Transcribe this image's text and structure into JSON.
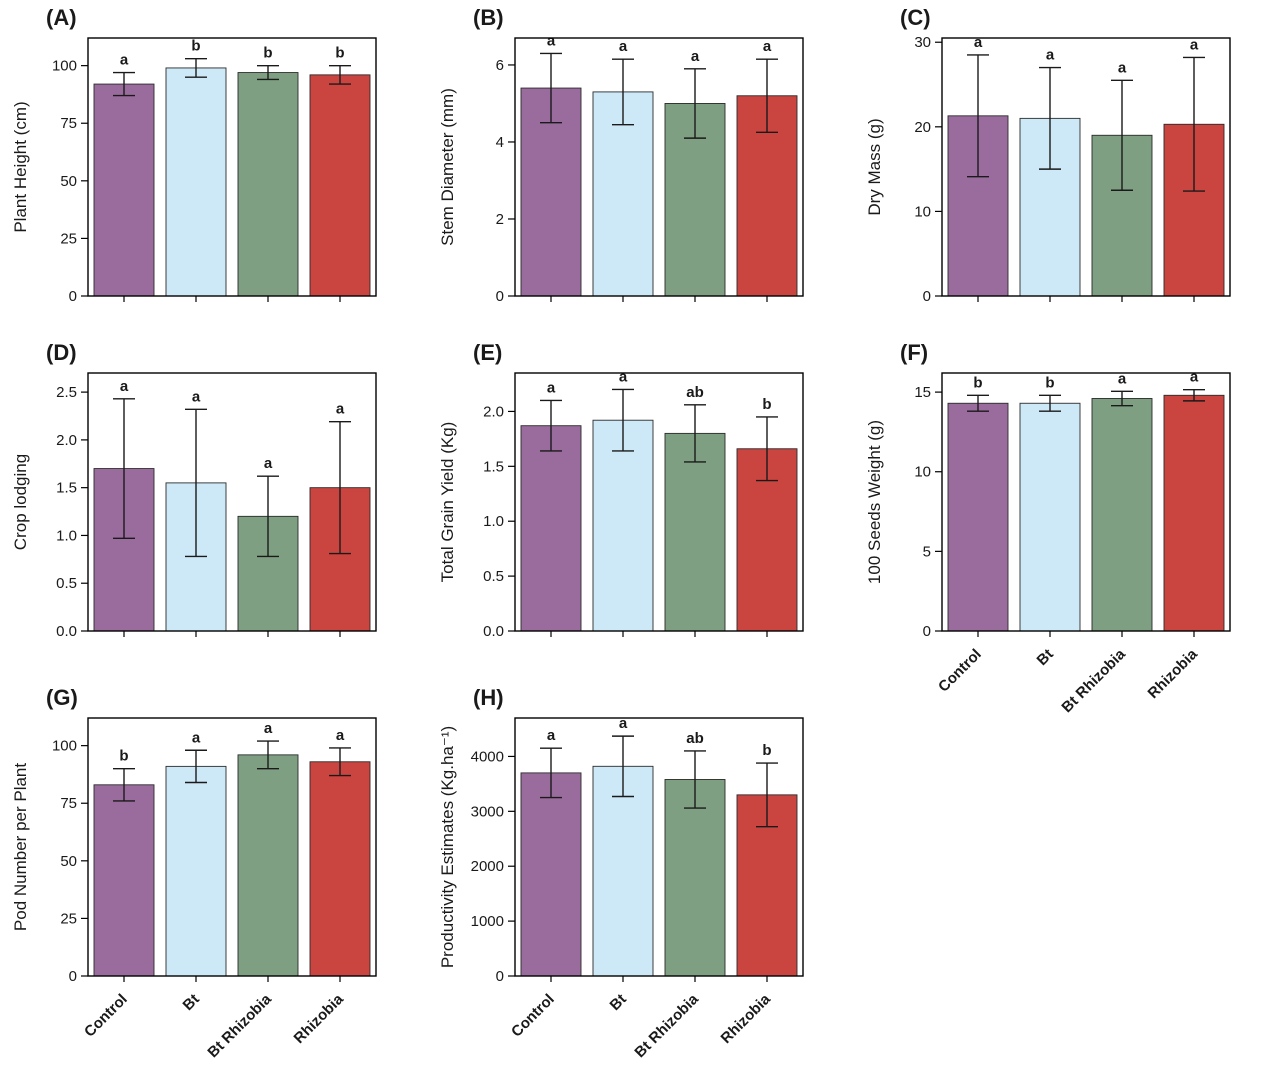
{
  "style": {
    "bar_colors": [
      "#9a6c9d",
      "#cde8f6",
      "#7e9f82",
      "#ca4540"
    ],
    "bar_stroke": "#2b2b2b",
    "error_bar_color": "#1a1a1a",
    "frame_color": "#000000",
    "text_color": "#1a1a1a",
    "background": "#ffffff"
  },
  "categories": [
    "Control",
    "Bt",
    "Bt Rhizobia",
    "Rhizobia"
  ],
  "chart_data": [
    {
      "panel": "(A)",
      "type": "bar",
      "ylabel": "Plant Height (cm)",
      "categories": [
        "Control",
        "Bt",
        "Bt Rhizobia",
        "Rhizobia"
      ],
      "values": [
        92,
        99,
        97,
        96
      ],
      "errors": [
        5,
        4,
        3,
        4
      ],
      "letters": [
        "a",
        "b",
        "b",
        "b"
      ],
      "ylim": [
        0,
        112
      ],
      "ytick_values": [
        0,
        25,
        50,
        75,
        100
      ],
      "ytick_labels": [
        "0",
        "25",
        "50",
        "75",
        "100"
      ],
      "show_x_labels": false
    },
    {
      "panel": "(B)",
      "type": "bar",
      "ylabel": "Stem Diameter (mm)",
      "categories": [
        "Control",
        "Bt",
        "Bt Rhizobia",
        "Rhizobia"
      ],
      "values": [
        5.4,
        5.3,
        5.0,
        5.2
      ],
      "errors": [
        0.9,
        0.85,
        0.9,
        0.95
      ],
      "letters": [
        "a",
        "a",
        "a",
        "a"
      ],
      "ylim": [
        0,
        6.7
      ],
      "ytick_values": [
        0,
        2,
        4,
        6
      ],
      "ytick_labels": [
        "0",
        "2",
        "4",
        "6"
      ],
      "show_x_labels": false
    },
    {
      "panel": "(C)",
      "type": "bar",
      "ylabel": "Dry Mass (g)",
      "categories": [
        "Control",
        "Bt",
        "Bt Rhizobia",
        "Rhizobia"
      ],
      "values": [
        21.3,
        21.0,
        19.0,
        20.3
      ],
      "errors": [
        7.2,
        6.0,
        6.5,
        7.9
      ],
      "letters": [
        "a",
        "a",
        "a",
        "a"
      ],
      "ylim": [
        0,
        30.5
      ],
      "ytick_values": [
        0,
        10,
        20,
        30
      ],
      "ytick_labels": [
        "0",
        "10",
        "20",
        "30"
      ],
      "show_x_labels": false
    },
    {
      "panel": "(D)",
      "type": "bar",
      "ylabel": "Crop lodging",
      "categories": [
        "Control",
        "Bt",
        "Bt Rhizobia",
        "Rhizobia"
      ],
      "values": [
        1.7,
        1.55,
        1.2,
        1.5
      ],
      "errors": [
        0.73,
        0.77,
        0.42,
        0.69
      ],
      "letters": [
        "a",
        "a",
        "a",
        "a"
      ],
      "ylim": [
        0,
        2.7
      ],
      "ytick_values": [
        0,
        0.5,
        1.0,
        1.5,
        2.0,
        2.5
      ],
      "ytick_labels": [
        "0.0",
        "0.5",
        "1.0",
        "1.5",
        "2.0",
        "2.5"
      ],
      "show_x_labels": false
    },
    {
      "panel": "(E)",
      "type": "bar",
      "ylabel": "Total Grain Yield (Kg)",
      "categories": [
        "Control",
        "Bt",
        "Bt Rhizobia",
        "Rhizobia"
      ],
      "values": [
        1.87,
        1.92,
        1.8,
        1.66
      ],
      "errors": [
        0.23,
        0.28,
        0.26,
        0.29
      ],
      "letters": [
        "a",
        "a",
        "ab",
        "b"
      ],
      "ylim": [
        0,
        2.35
      ],
      "ytick_values": [
        0,
        0.5,
        1.0,
        1.5,
        2.0
      ],
      "ytick_labels": [
        "0.0",
        "0.5",
        "1.0",
        "1.5",
        "2.0"
      ],
      "show_x_labels": false
    },
    {
      "panel": "(F)",
      "type": "bar",
      "ylabel": "100 Seeds Weight (g)",
      "categories": [
        "Control",
        "Bt",
        "Bt Rhizobia",
        "Rhizobia"
      ],
      "values": [
        14.3,
        14.3,
        14.6,
        14.8
      ],
      "errors": [
        0.5,
        0.5,
        0.45,
        0.35
      ],
      "letters": [
        "b",
        "b",
        "a",
        "a"
      ],
      "ylim": [
        0,
        16.2
      ],
      "ytick_values": [
        0,
        5,
        10,
        15
      ],
      "ytick_labels": [
        "0",
        "5",
        "10",
        "15"
      ],
      "show_x_labels": true
    },
    {
      "panel": "(G)",
      "type": "bar",
      "ylabel": "Pod Number per Plant",
      "categories": [
        "Control",
        "Bt",
        "Bt Rhizobia",
        "Rhizobia"
      ],
      "values": [
        83,
        91,
        96,
        93
      ],
      "errors": [
        7,
        7,
        6,
        6
      ],
      "letters": [
        "b",
        "a",
        "a",
        "a"
      ],
      "ylim": [
        0,
        112
      ],
      "ytick_values": [
        0,
        25,
        50,
        75,
        100
      ],
      "ytick_labels": [
        "0",
        "25",
        "50",
        "75",
        "100"
      ],
      "show_x_labels": true
    },
    {
      "panel": "(H)",
      "type": "bar",
      "ylabel": "Productivity Estimates (Kg.ha⁻¹)",
      "categories": [
        "Control",
        "Bt",
        "Bt Rhizobia",
        "Rhizobia"
      ],
      "values": [
        3700,
        3820,
        3580,
        3300
      ],
      "errors": [
        450,
        550,
        520,
        580
      ],
      "letters": [
        "a",
        "a",
        "ab",
        "b"
      ],
      "ylim": [
        0,
        4700
      ],
      "ytick_values": [
        0,
        1000,
        2000,
        3000,
        4000
      ],
      "ytick_labels": [
        "0",
        "1000",
        "2000",
        "3000",
        "4000"
      ],
      "show_x_labels": true
    }
  ]
}
